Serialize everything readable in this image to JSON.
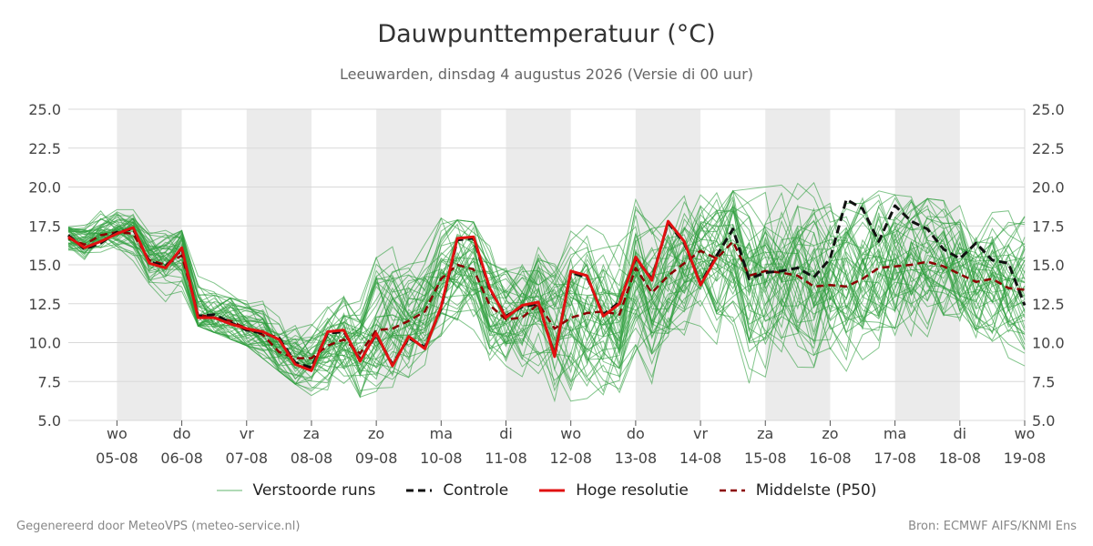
{
  "header": {
    "title": "Dauwpunttemperatuur (°C)",
    "subtitle": "Leeuwarden, dinsdag  4 augustus 2026 (Versie di 00 uur)"
  },
  "footer": {
    "left": "Gegenereerd door MeteoVPS (meteo-service.nl)",
    "right": "Bron: ECMWF AIFS/KNMI Ens"
  },
  "legend": [
    {
      "label": "Verstoorde runs",
      "color": "#2e9e3e",
      "style": "thin"
    },
    {
      "label": "Controle",
      "color": "#111111",
      "style": "dashed"
    },
    {
      "label": "Hoge resolutie",
      "color": "#e01010",
      "style": "solid"
    },
    {
      "label": "Middelste (P50)",
      "color": "#8b0000",
      "style": "dashed"
    }
  ],
  "chart_data": {
    "type": "line",
    "title": "Dauwpunttemperatuur (°C)",
    "ylim": [
      5.0,
      25.0
    ],
    "y_ticks": [
      "5.0",
      "7.5",
      "10.0",
      "12.5",
      "15.0",
      "17.5",
      "20.0",
      "22.5",
      "25.0"
    ],
    "x_range_days": [
      -0.75,
      14.0
    ],
    "x_ticks": [
      {
        "day": 0,
        "weekday": "wo",
        "date": "05-08"
      },
      {
        "day": 1,
        "weekday": "do",
        "date": "06-08"
      },
      {
        "day": 2,
        "weekday": "vr",
        "date": "07-08"
      },
      {
        "day": 3,
        "weekday": "za",
        "date": "08-08"
      },
      {
        "day": 4,
        "weekday": "zo",
        "date": "09-08"
      },
      {
        "day": 5,
        "weekday": "ma",
        "date": "10-08"
      },
      {
        "day": 6,
        "weekday": "di",
        "date": "11-08"
      },
      {
        "day": 7,
        "weekday": "wo",
        "date": "12-08"
      },
      {
        "day": 8,
        "weekday": "do",
        "date": "13-08"
      },
      {
        "day": 9,
        "weekday": "vr",
        "date": "14-08"
      },
      {
        "day": 10,
        "weekday": "za",
        "date": "15-08"
      },
      {
        "day": 11,
        "weekday": "zo",
        "date": "16-08"
      },
      {
        "day": 12,
        "weekday": "ma",
        "date": "17-08"
      },
      {
        "day": 13,
        "weekday": "di",
        "date": "18-08"
      },
      {
        "day": 14,
        "weekday": "wo",
        "date": "19-08"
      }
    ],
    "shaded_day_bands": [
      0,
      2,
      4,
      6,
      8,
      10,
      12
    ],
    "grid": true,
    "legend_position": "bottom",
    "series": [
      {
        "name": "Hoge resolutie",
        "color": "#e01010",
        "points": [
          [
            -0.75,
            16.8
          ],
          [
            -0.5,
            16.1
          ],
          [
            -0.25,
            16.5
          ],
          [
            0,
            17.0
          ],
          [
            0.25,
            17.4
          ],
          [
            0.5,
            15.1
          ],
          [
            0.75,
            14.8
          ],
          [
            1,
            16.1
          ],
          [
            1.25,
            11.6
          ],
          [
            1.5,
            11.6
          ],
          [
            1.75,
            11.2
          ],
          [
            2,
            10.9
          ],
          [
            2.25,
            10.7
          ],
          [
            2.5,
            10.2
          ],
          [
            2.75,
            8.6
          ],
          [
            3,
            8.2
          ],
          [
            3.25,
            10.7
          ],
          [
            3.5,
            10.8
          ],
          [
            3.75,
            8.8
          ],
          [
            4,
            10.6
          ],
          [
            4.25,
            8.5
          ],
          [
            4.5,
            10.4
          ],
          [
            4.75,
            9.6
          ],
          [
            5,
            12.3
          ],
          [
            5.25,
            16.7
          ],
          [
            5.5,
            16.8
          ],
          [
            5.75,
            13.5
          ],
          [
            6,
            11.6
          ],
          [
            6.25,
            12.4
          ],
          [
            6.5,
            12.6
          ],
          [
            6.75,
            9.1
          ],
          [
            7,
            14.6
          ],
          [
            7.25,
            14.3
          ],
          [
            7.5,
            11.7
          ],
          [
            7.75,
            12.5
          ],
          [
            8,
            15.5
          ],
          [
            8.25,
            14.0
          ],
          [
            8.5,
            17.8
          ],
          [
            8.75,
            16.5
          ],
          [
            9,
            13.7
          ],
          [
            9.25,
            15.5
          ]
        ]
      },
      {
        "name": "Controle",
        "color": "#111111",
        "points": [
          [
            -0.75,
            16.9
          ],
          [
            -0.5,
            16.0
          ],
          [
            -0.25,
            16.4
          ],
          [
            0,
            17.1
          ],
          [
            0.25,
            17.3
          ],
          [
            0.5,
            15.2
          ],
          [
            0.75,
            14.9
          ],
          [
            1,
            16.0
          ],
          [
            1.25,
            11.7
          ],
          [
            1.5,
            11.8
          ],
          [
            1.75,
            11.3
          ],
          [
            2,
            10.8
          ],
          [
            2.25,
            10.6
          ],
          [
            2.5,
            10.3
          ],
          [
            2.75,
            8.7
          ],
          [
            3,
            8.4
          ],
          [
            3.25,
            10.6
          ],
          [
            3.5,
            10.7
          ],
          [
            3.75,
            8.9
          ],
          [
            4,
            10.5
          ],
          [
            4.25,
            8.6
          ],
          [
            4.5,
            10.3
          ],
          [
            4.75,
            9.7
          ],
          [
            5,
            12.2
          ],
          [
            5.25,
            16.6
          ],
          [
            5.5,
            16.7
          ],
          [
            5.75,
            13.4
          ],
          [
            6,
            11.7
          ],
          [
            6.25,
            12.3
          ],
          [
            6.5,
            12.5
          ],
          [
            6.75,
            9.2
          ],
          [
            7,
            14.5
          ],
          [
            7.25,
            14.2
          ],
          [
            7.5,
            11.8
          ],
          [
            7.75,
            12.6
          ],
          [
            8,
            15.4
          ],
          [
            8.25,
            14.1
          ],
          [
            8.5,
            17.7
          ],
          [
            8.75,
            16.4
          ],
          [
            9,
            13.8
          ],
          [
            9.25,
            15.6
          ],
          [
            9.5,
            17.3
          ],
          [
            9.75,
            14.1
          ],
          [
            10,
            14.5
          ],
          [
            10.25,
            14.6
          ],
          [
            10.5,
            14.8
          ],
          [
            10.75,
            14.2
          ],
          [
            11,
            15.4
          ],
          [
            11.25,
            19.2
          ],
          [
            11.5,
            18.6
          ],
          [
            11.75,
            16.5
          ],
          [
            12,
            18.8
          ],
          [
            12.25,
            17.8
          ],
          [
            12.5,
            17.3
          ],
          [
            12.75,
            16.0
          ],
          [
            13,
            15.4
          ],
          [
            13.25,
            16.4
          ],
          [
            13.5,
            15.3
          ],
          [
            13.75,
            15.1
          ],
          [
            14,
            12.4
          ]
        ]
      },
      {
        "name": "Middelste (P50)",
        "color": "#8b0000",
        "points": [
          [
            -0.75,
            16.7
          ],
          [
            -0.5,
            16.3
          ],
          [
            -0.25,
            16.9
          ],
          [
            0,
            17.1
          ],
          [
            0.25,
            17.0
          ],
          [
            0.5,
            15.3
          ],
          [
            0.75,
            15.0
          ],
          [
            1,
            15.6
          ],
          [
            1.25,
            11.8
          ],
          [
            1.5,
            11.6
          ],
          [
            1.75,
            11.4
          ],
          [
            2,
            10.9
          ],
          [
            2.25,
            10.5
          ],
          [
            2.5,
            9.4
          ],
          [
            2.75,
            9.0
          ],
          [
            3,
            9.0
          ],
          [
            3.25,
            9.8
          ],
          [
            3.5,
            10.2
          ],
          [
            3.75,
            9.3
          ],
          [
            4,
            10.8
          ],
          [
            4.25,
            10.9
          ],
          [
            4.5,
            11.4
          ],
          [
            4.75,
            12.0
          ],
          [
            5,
            14.1
          ],
          [
            5.25,
            15.0
          ],
          [
            5.5,
            14.7
          ],
          [
            5.75,
            12.4
          ],
          [
            6,
            11.5
          ],
          [
            6.25,
            11.6
          ],
          [
            6.5,
            12.5
          ],
          [
            6.75,
            10.9
          ],
          [
            7,
            11.6
          ],
          [
            7.25,
            11.9
          ],
          [
            7.5,
            12.0
          ],
          [
            7.75,
            11.8
          ],
          [
            8,
            14.8
          ],
          [
            8.25,
            13.2
          ],
          [
            8.5,
            14.3
          ],
          [
            8.75,
            15.1
          ],
          [
            9,
            15.9
          ],
          [
            9.25,
            15.4
          ],
          [
            9.5,
            16.5
          ],
          [
            9.75,
            14.3
          ],
          [
            10,
            14.6
          ],
          [
            10.25,
            14.5
          ],
          [
            10.5,
            14.3
          ],
          [
            10.75,
            13.6
          ],
          [
            11,
            13.7
          ],
          [
            11.25,
            13.6
          ],
          [
            11.5,
            14.1
          ],
          [
            11.75,
            14.8
          ],
          [
            12,
            14.9
          ],
          [
            12.25,
            15.0
          ],
          [
            12.5,
            15.2
          ],
          [
            12.75,
            14.9
          ],
          [
            13,
            14.4
          ],
          [
            13.25,
            13.9
          ],
          [
            13.5,
            14.1
          ],
          [
            13.75,
            13.5
          ],
          [
            14,
            13.4
          ]
        ]
      }
    ],
    "perturbed_runs": {
      "name": "Verstoorde runs",
      "color": "#2e9e3e",
      "member_count": 50,
      "spread_envelope": {
        "day": [
          -0.75,
          0,
          1,
          2,
          3,
          4,
          5,
          6,
          7,
          8,
          9,
          10,
          11,
          12,
          13,
          14
        ],
        "low": [
          15.0,
          16.0,
          11.5,
          9.8,
          6.5,
          6.5,
          9.0,
          8.5,
          5.5,
          7.0,
          8.5,
          5.5,
          6.5,
          6.8,
          8.5,
          8.5
        ],
        "high": [
          17.8,
          19.6,
          17.2,
          14.0,
          12.0,
          17.0,
          18.0,
          17.5,
          19.2,
          19.2,
          19.5,
          20.0,
          20.5,
          19.5,
          19.0,
          19.5
        ]
      }
    }
  }
}
